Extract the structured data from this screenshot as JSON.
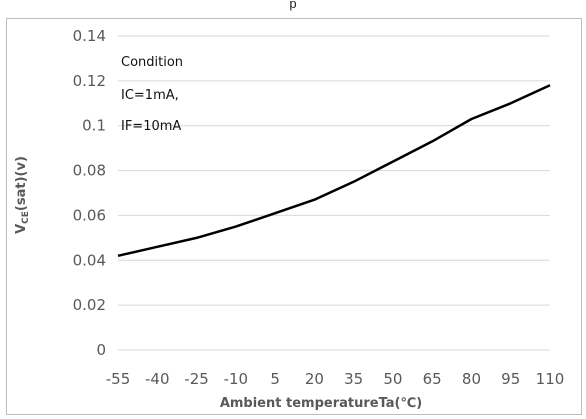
{
  "chart_data": {
    "type": "line",
    "title": "",
    "xlabel": "Ambient temperatureTa(℃)",
    "ylabel_parts": [
      "V",
      "CE",
      "(sat)(v)"
    ],
    "x_ticks": [
      "-55",
      "-40",
      "-25",
      "-10",
      "5",
      "20",
      "35",
      "50",
      "65",
      "80",
      "95",
      "110"
    ],
    "y_ticks": [
      "0",
      "0.02",
      "0.04",
      "0.06",
      "0.08",
      "0.1",
      "0.12",
      "0.14"
    ],
    "ylim": [
      0,
      0.14
    ],
    "grid": true,
    "legend": "none",
    "line_color": "#000000",
    "grid_color": "#d9d9d9",
    "series": [
      {
        "x": [
          -55,
          -40,
          -25,
          -10,
          5,
          20,
          35,
          50,
          65,
          80,
          95,
          110
        ],
        "values": [
          0.042,
          0.046,
          0.05,
          0.055,
          0.061,
          0.067,
          0.075,
          0.084,
          0.093,
          0.103,
          0.11,
          0.118
        ]
      }
    ],
    "annotations": [
      "Condition",
      "IC=1mA,",
      "IF=10mA"
    ]
  }
}
